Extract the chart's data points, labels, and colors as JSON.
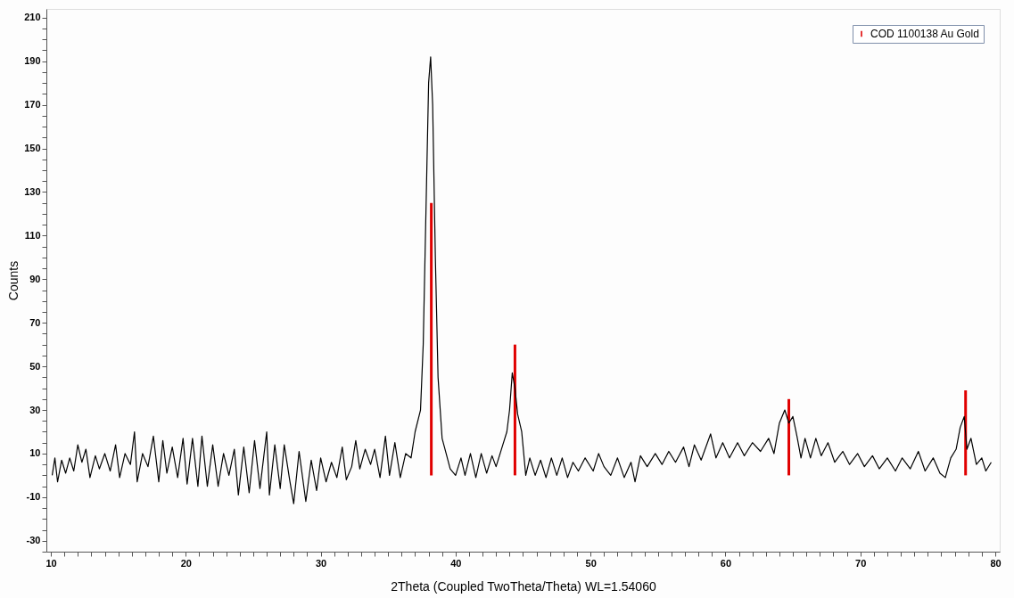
{
  "chart_data": {
    "type": "line",
    "xlabel": "2Theta (Coupled TwoTheta/Theta) WL=1.54060",
    "ylabel": "Counts",
    "xlim": [
      10,
      80
    ],
    "ylim": [
      -35,
      214
    ],
    "xticks": [
      10,
      {
        "value": 11,
        "label": null
      },
      {
        "value": 12,
        "label": null
      },
      {
        "value": 13,
        "label": null
      },
      {
        "value": 14,
        "label": null
      },
      {
        "value": 15,
        "label": null
      },
      {
        "value": 16,
        "label": null
      },
      {
        "value": 17,
        "label": null
      },
      {
        "value": 18,
        "label": null
      },
      {
        "value": 19,
        "label": null
      },
      20,
      {
        "value": 21,
        "label": null
      },
      {
        "value": 22,
        "label": null
      },
      {
        "value": 23,
        "label": null
      },
      {
        "value": 24,
        "label": null
      },
      {
        "value": 25,
        "label": null
      },
      {
        "value": 26,
        "label": null
      },
      {
        "value": 27,
        "label": null
      },
      {
        "value": 28,
        "label": null
      },
      {
        "value": 29,
        "label": null
      },
      30,
      {
        "value": 31,
        "label": null
      },
      {
        "value": 32,
        "label": null
      },
      {
        "value": 33,
        "label": null
      },
      {
        "value": 34,
        "label": null
      },
      {
        "value": 35,
        "label": null
      },
      {
        "value": 36,
        "label": null
      },
      {
        "value": 37,
        "label": null
      },
      {
        "value": 38,
        "label": null
      },
      {
        "value": 39,
        "label": null
      },
      40,
      {
        "value": 41,
        "label": null
      },
      {
        "value": 42,
        "label": null
      },
      {
        "value": 43,
        "label": null
      },
      {
        "value": 44,
        "label": null
      },
      {
        "value": 45,
        "label": null
      },
      {
        "value": 46,
        "label": null
      },
      {
        "value": 47,
        "label": null
      },
      {
        "value": 48,
        "label": null
      },
      {
        "value": 49,
        "label": null
      },
      50,
      {
        "value": 51,
        "label": null
      },
      {
        "value": 52,
        "label": null
      },
      {
        "value": 53,
        "label": null
      },
      {
        "value": 54,
        "label": null
      },
      {
        "value": 55,
        "label": null
      },
      {
        "value": 56,
        "label": null
      },
      {
        "value": 57,
        "label": null
      },
      {
        "value": 58,
        "label": null
      },
      {
        "value": 59,
        "label": null
      },
      60,
      {
        "value": 61,
        "label": null
      },
      {
        "value": 62,
        "label": null
      },
      {
        "value": 63,
        "label": null
      },
      {
        "value": 64,
        "label": null
      },
      {
        "value": 65,
        "label": null
      },
      {
        "value": 66,
        "label": null
      },
      {
        "value": 67,
        "label": null
      },
      {
        "value": 68,
        "label": null
      },
      {
        "value": 69,
        "label": null
      },
      70,
      {
        "value": 71,
        "label": null
      },
      {
        "value": 72,
        "label": null
      },
      {
        "value": 73,
        "label": null
      },
      {
        "value": 74,
        "label": null
      },
      {
        "value": 75,
        "label": null
      },
      {
        "value": 76,
        "label": null
      },
      {
        "value": 77,
        "label": null
      },
      {
        "value": 78,
        "label": null
      },
      {
        "value": 79,
        "label": null
      },
      80
    ],
    "yticks": [
      {
        "value": -35,
        "label": null
      },
      -30,
      {
        "value": -25,
        "label": null
      },
      {
        "value": -20,
        "label": null
      },
      {
        "value": -15,
        "label": null
      },
      -10,
      {
        "value": -5,
        "label": null
      },
      {
        "value": 0,
        "label": null
      },
      {
        "value": 5,
        "label": null
      },
      10,
      {
        "value": 15,
        "label": null
      },
      {
        "value": 20,
        "label": null
      },
      {
        "value": 25,
        "label": null
      },
      30,
      {
        "value": 35,
        "label": null
      },
      {
        "value": 40,
        "label": null
      },
      {
        "value": 45,
        "label": null
      },
      50,
      {
        "value": 55,
        "label": null
      },
      {
        "value": 60,
        "label": null
      },
      {
        "value": 65,
        "label": null
      },
      70,
      {
        "value": 75,
        "label": null
      },
      {
        "value": 80,
        "label": null
      },
      {
        "value": 85,
        "label": null
      },
      90,
      {
        "value": 95,
        "label": null
      },
      {
        "value": 100,
        "label": null
      },
      {
        "value": 105,
        "label": null
      },
      110,
      {
        "value": 115,
        "label": null
      },
      {
        "value": 120,
        "label": null
      },
      {
        "value": 125,
        "label": null
      },
      130,
      {
        "value": 135,
        "label": null
      },
      {
        "value": 140,
        "label": null
      },
      {
        "value": 145,
        "label": null
      },
      150,
      {
        "value": 155,
        "label": null
      },
      {
        "value": 160,
        "label": null
      },
      {
        "value": 165,
        "label": null
      },
      170,
      {
        "value": 175,
        "label": null
      },
      {
        "value": 180,
        "label": null
      },
      {
        "value": 185,
        "label": null
      },
      190,
      {
        "value": 195,
        "label": null
      },
      {
        "value": 200,
        "label": null
      },
      {
        "value": 205,
        "label": null
      },
      210
    ],
    "grid": false,
    "legend": "top right",
    "line_style": "solid",
    "marker": "none",
    "series": [
      {
        "color": "#000000",
        "x": [
          10.1,
          10.3,
          10.5,
          10.8,
          11.1,
          11.4,
          11.7,
          12.0,
          12.3,
          12.6,
          12.9,
          13.3,
          13.6,
          14.0,
          14.4,
          14.8,
          15.1,
          15.5,
          15.9,
          16.2,
          16.4,
          16.8,
          17.2,
          17.6,
          18.0,
          18.3,
          18.6,
          19.0,
          19.4,
          19.8,
          20.1,
          20.5,
          20.9,
          21.2,
          21.6,
          22.0,
          22.4,
          22.8,
          23.2,
          23.6,
          23.9,
          24.3,
          24.7,
          25.1,
          25.5,
          26.0,
          26.2,
          26.6,
          27.0,
          27.3,
          27.7,
          28.0,
          28.4,
          28.9,
          29.3,
          29.7,
          30.0,
          30.4,
          30.8,
          31.2,
          31.6,
          31.9,
          32.3,
          32.6,
          32.9,
          33.3,
          33.7,
          34.0,
          34.4,
          34.8,
          35.1,
          35.5,
          35.9,
          36.3,
          36.7,
          37.0,
          37.4,
          37.6,
          37.8,
          38.0,
          38.15,
          38.3,
          38.5,
          38.7,
          39.0,
          39.3,
          39.6,
          40.0,
          40.4,
          40.7,
          41.1,
          41.5,
          41.9,
          42.3,
          42.7,
          43.0,
          43.5,
          43.8,
          44.0,
          44.2,
          44.4,
          44.6,
          44.9,
          45.2,
          45.5,
          45.9,
          46.3,
          46.7,
          47.1,
          47.5,
          47.9,
          48.3,
          48.7,
          49.1,
          49.6,
          50.2,
          50.6,
          51.0,
          51.5,
          52.0,
          52.5,
          53.0,
          53.3,
          53.7,
          54.2,
          54.8,
          55.3,
          55.8,
          56.3,
          56.9,
          57.3,
          57.7,
          58.2,
          58.9,
          59.3,
          59.8,
          60.3,
          60.9,
          61.4,
          62.0,
          62.6,
          63.2,
          63.6,
          64.0,
          64.4,
          64.7,
          65.0,
          65.3,
          65.6,
          65.9,
          66.3,
          66.7,
          67.1,
          67.6,
          68.1,
          68.7,
          69.2,
          69.8,
          70.3,
          70.9,
          71.4,
          72.0,
          72.6,
          73.1,
          73.7,
          74.3,
          74.8,
          75.4,
          75.9,
          76.3,
          76.7,
          77.1,
          77.4,
          77.7,
          77.9,
          78.2,
          78.6,
          79.0,
          79.3,
          79.7
        ],
        "values": [
          0,
          8,
          -3,
          7,
          1,
          8,
          2,
          14,
          6,
          12,
          -1,
          9,
          3,
          10,
          2,
          14,
          -1,
          10,
          5,
          20,
          -3,
          10,
          4,
          18,
          -3,
          16,
          1,
          13,
          -1,
          17,
          -4,
          17,
          -5,
          18,
          -5,
          14,
          -5,
          10,
          0,
          12,
          -9,
          13,
          -8,
          16,
          -6,
          20,
          -9,
          14,
          -6,
          14,
          -2,
          -13,
          11,
          -12,
          7,
          -7,
          8,
          -3,
          6,
          -1,
          13,
          -2,
          4,
          16,
          3,
          12,
          5,
          12,
          -1,
          18,
          0,
          15,
          -1,
          10,
          8,
          20,
          30,
          60,
          120,
          180,
          192,
          170,
          100,
          45,
          17,
          10,
          3,
          0,
          8,
          0,
          10,
          -1,
          10,
          1,
          9,
          4,
          14,
          20,
          30,
          47,
          40,
          28,
          20,
          0,
          8,
          0,
          7,
          -1,
          8,
          0,
          8,
          -1,
          6,
          2,
          8,
          2,
          10,
          4,
          0,
          8,
          -1,
          6,
          -3,
          9,
          4,
          10,
          5,
          11,
          6,
          13,
          4,
          14,
          7,
          19,
          8,
          15,
          8,
          15,
          9,
          15,
          11,
          17,
          10,
          24,
          30,
          24,
          27,
          18,
          8,
          17,
          8,
          17,
          9,
          15,
          6,
          11,
          5,
          10,
          4,
          9,
          3,
          8,
          2,
          8,
          3,
          11,
          2,
          8,
          1,
          -1,
          8,
          12,
          22,
          27,
          12,
          17,
          5,
          8,
          2,
          6
        ]
      },
      {
        "type": "bar",
        "name": "COD 1100138 Au Gold",
        "color": "#e00000",
        "x": [
          38.2,
          44.4,
          64.7,
          77.8
        ],
        "values": [
          125,
          60,
          35,
          39
        ]
      }
    ]
  }
}
